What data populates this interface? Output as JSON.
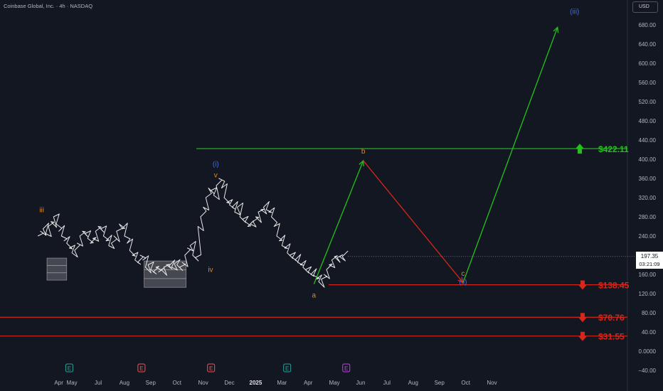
{
  "header": {
    "title": "Coinbase Global, Inc. · 4h · NASDAQ",
    "currency": "USD"
  },
  "price_tag": {
    "last": "197.35",
    "countdown": "03:21:09"
  },
  "colors": {
    "background": "#131722",
    "green": "#22c21a",
    "red": "#d8271a",
    "orange": "#e28a1a",
    "blue": "#3f6ee0",
    "candles": "#e8e8e8"
  },
  "chart_data": {
    "type": "line",
    "y_axis": {
      "ticks": [
        -40,
        0,
        40,
        80,
        120,
        160,
        200,
        240,
        280,
        320,
        360,
        400,
        440,
        480,
        520,
        560,
        600,
        640,
        680
      ],
      "labels": [
        "−40.00",
        "0.0000",
        "40.00",
        "80.00",
        "120.00",
        "160.00",
        "200.00",
        "240.00",
        "280.00",
        "320.00",
        "360.00",
        "400.00",
        "440.00",
        "480.00",
        "520.00",
        "560.00",
        "600.00",
        "640.00",
        "680.00"
      ],
      "ylim": [
        -50,
        720
      ]
    },
    "x_axis": {
      "labels": [
        "Apr",
        "May",
        "Jul",
        "Aug",
        "Sep",
        "Oct",
        "Nov",
        "Dec",
        "2025",
        "Mar",
        "Apr",
        "May",
        "Jun",
        "Jul",
        "Aug",
        "Sep",
        "Oct",
        "Nov"
      ],
      "bold": [
        false,
        false,
        false,
        false,
        false,
        false,
        false,
        false,
        true,
        false,
        false,
        false,
        false,
        false,
        false,
        false,
        false,
        false
      ],
      "x": [
        -1.5,
        -1.0,
        0,
        1,
        2,
        3,
        4,
        5,
        6,
        7,
        8,
        9,
        10,
        11,
        12,
        13,
        14,
        15
      ]
    },
    "price_series": {
      "name": "COIN",
      "x": [
        -2.3,
        -2.2,
        -2.1,
        -2.0,
        -1.9,
        -1.8,
        -1.7,
        -1.6,
        -1.5,
        -1.4,
        -1.3,
        -1.2,
        -1.1,
        -1.0,
        -0.9,
        -0.8,
        -0.7,
        -0.6,
        -0.5,
        -0.4,
        -0.3,
        -0.2,
        -0.1,
        0.0,
        0.1,
        0.2,
        0.3,
        0.4,
        0.5,
        0.6,
        0.7,
        0.8,
        0.9,
        1.0,
        1.1,
        1.2,
        1.3,
        1.4,
        1.5,
        1.6,
        1.7,
        1.8,
        1.9,
        2.0,
        2.1,
        2.2,
        2.3,
        2.4,
        2.5,
        2.6,
        2.7,
        2.8,
        2.9,
        3.0,
        3.1,
        3.2,
        3.3,
        3.4,
        3.5,
        3.6,
        3.7,
        3.8,
        3.9,
        4.0,
        4.1,
        4.2,
        4.3,
        4.4,
        4.5,
        4.6,
        4.7,
        4.8,
        4.9,
        5.0,
        5.1,
        5.2,
        5.3,
        5.4,
        5.5,
        5.6,
        5.7,
        5.8,
        5.9,
        6.0,
        6.1,
        6.2,
        6.3,
        6.4,
        6.5,
        6.6,
        6.7,
        6.8,
        6.9,
        7.0,
        7.1,
        7.2,
        7.3,
        7.4,
        7.5,
        7.6,
        7.7,
        7.8,
        7.9,
        8.0,
        8.1,
        8.2,
        8.3,
        8.4,
        8.5,
        8.6,
        8.7,
        8.8,
        8.9,
        9.0,
        9.1,
        9.2,
        9.3
      ],
      "y": [
        240,
        250,
        255,
        245,
        260,
        270,
        280,
        265,
        250,
        240,
        230,
        225,
        215,
        205,
        210,
        225,
        240,
        250,
        245,
        235,
        225,
        235,
        250,
        260,
        255,
        240,
        230,
        220,
        225,
        240,
        250,
        265,
        255,
        240,
        225,
        210,
        200,
        190,
        185,
        200,
        190,
        175,
        180,
        170,
        165,
        175,
        165,
        170,
        175,
        180,
        178,
        175,
        182,
        180,
        175,
        185,
        200,
        215,
        220,
        200,
        195,
        260,
        280,
        300,
        320,
        340,
        335,
        325,
        345,
        360,
        340,
        320,
        310,
        305,
        300,
        290,
        300,
        280,
        275,
        270,
        260,
        265,
        270,
        280,
        290,
        295,
        300,
        295,
        290,
        280,
        260,
        240,
        230,
        220,
        215,
        205,
        200,
        195,
        190,
        185,
        180,
        175,
        170,
        165,
        160,
        158,
        150,
        145,
        150,
        160,
        170,
        180,
        190,
        197,
        195,
        197,
        197
      ],
      "last": 197.35
    },
    "levels": [
      {
        "label": "$422.11",
        "value": 422.11,
        "color": "#22c21a",
        "direction": "up"
      },
      {
        "label": "$138.45",
        "value": 138.45,
        "color": "#d8271a",
        "direction": "down"
      },
      {
        "label": "$70.76",
        "value": 70.76,
        "color": "#d8271a",
        "direction": "down"
      },
      {
        "label": "$31.55",
        "value": 31.55,
        "color": "#d8271a",
        "direction": "down"
      }
    ],
    "projection": [
      {
        "from": {
          "x": 8.22,
          "y": 140
        },
        "to": {
          "x": 10.1,
          "y": 397
        },
        "color": "#22c21a"
      },
      {
        "from": {
          "x": 10.1,
          "y": 397
        },
        "to": {
          "x": 13.9,
          "y": 143
        },
        "color": "#d8271a"
      },
      {
        "from": {
          "x": 13.9,
          "y": 143
        },
        "to": {
          "x": 17.5,
          "y": 675
        },
        "color": "#22c21a"
      }
    ],
    "wave_labels": [
      {
        "text": "iii",
        "x": -2.15,
        "y": 290,
        "color": "#e28a1a"
      },
      {
        "text": "(i)",
        "x": 4.48,
        "y": 385,
        "color": "#3f6ee0"
      },
      {
        "text": "v",
        "x": 4.48,
        "y": 362,
        "color": "#e28a1a"
      },
      {
        "text": "iv",
        "x": 4.28,
        "y": 165,
        "color": "#e28a1a"
      },
      {
        "text": "a",
        "x": 8.22,
        "y": 112,
        "color": "#e28a1a"
      },
      {
        "text": "b",
        "x": 10.1,
        "y": 412,
        "color": "#e28a1a"
      },
      {
        "text": "c",
        "x": 13.9,
        "y": 157,
        "color": "#e28a1a"
      },
      {
        "text": "(ii)",
        "x": 13.9,
        "y": 139,
        "color": "#3f6ee0"
      },
      {
        "text": "(iii)",
        "x": 18.15,
        "y": 703,
        "color": "#3f6ee0"
      }
    ],
    "range_boxes": [
      {
        "x0": -1.95,
        "x1": -1.2,
        "y0": 148,
        "y1": 194
      },
      {
        "x0": 1.75,
        "x1": 3.35,
        "y0": 133,
        "y1": 188
      }
    ],
    "event_markers": [
      {
        "text": "E",
        "x": -1.1,
        "color": "#26a69a"
      },
      {
        "text": "E",
        "x": 1.65,
        "color": "#ef5350"
      },
      {
        "text": "E",
        "x": 4.3,
        "color": "#ef5350"
      },
      {
        "text": "E",
        "x": 7.2,
        "color": "#26a69a"
      },
      {
        "text": "E",
        "x": 9.45,
        "color": "#c042e0"
      }
    ]
  }
}
